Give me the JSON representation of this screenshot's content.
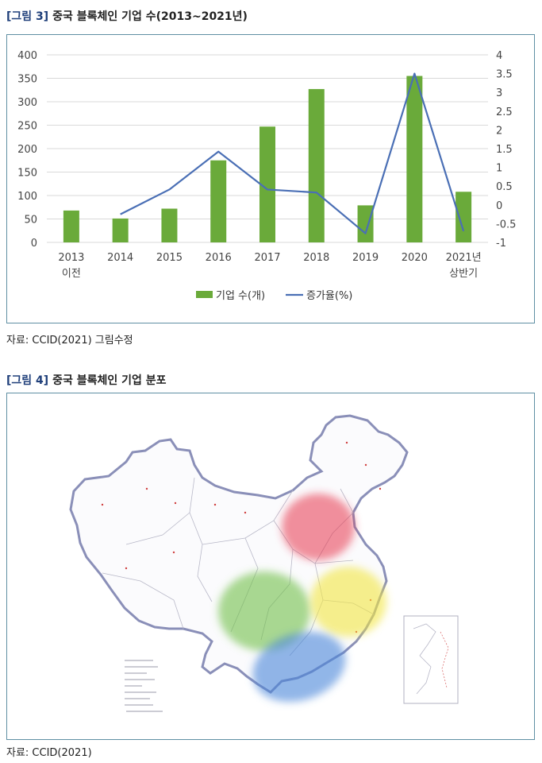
{
  "figure3": {
    "tag": "[그림 3]",
    "title": "중국 블록체인 기업 수(2013~2021년)",
    "source": "자료: CCID(2021) 그림수정"
  },
  "figure4": {
    "tag": "[그림 4]",
    "title": "중국 블록체인 기업 분포",
    "source": "자료: CCID(2021)"
  },
  "chart_data": {
    "type": "bar",
    "categories": [
      [
        "2013",
        "이전"
      ],
      [
        "2014"
      ],
      [
        "2015"
      ],
      [
        "2016"
      ],
      [
        "2017"
      ],
      [
        "2018"
      ],
      [
        "2019"
      ],
      [
        "2020"
      ],
      [
        "2021년",
        "상반기"
      ]
    ],
    "series": [
      {
        "name": "기업 수(개)",
        "type": "bar",
        "axis": "left",
        "color": "#6aaa3a",
        "values": [
          68,
          51,
          72,
          175,
          247,
          327,
          79,
          355,
          108
        ]
      },
      {
        "name": "증가율(%)",
        "type": "line",
        "axis": "right",
        "color": "#4a6fb5",
        "values": [
          null,
          -0.25,
          0.41,
          1.42,
          0.41,
          0.33,
          -0.76,
          3.5,
          -0.7
        ]
      }
    ],
    "left_axis": {
      "min": 0,
      "max": 400,
      "ticks": [
        "0",
        "50",
        "100",
        "150",
        "200",
        "250",
        "300",
        "350",
        "400"
      ]
    },
    "right_axis": {
      "min": -1,
      "max": 4,
      "ticks": [
        "-1",
        "-0.5",
        "0",
        "0.5",
        "1",
        "1.5",
        "2",
        "2.5",
        "3",
        "3.5",
        "4"
      ]
    },
    "grid": true,
    "legend": "bottom"
  },
  "map": {
    "regions": [
      {
        "name": "north",
        "color": "#e8334a"
      },
      {
        "name": "east",
        "color": "#f2e640"
      },
      {
        "name": "southwest",
        "color": "#72c04a"
      },
      {
        "name": "south",
        "color": "#4a86d8"
      }
    ]
  }
}
